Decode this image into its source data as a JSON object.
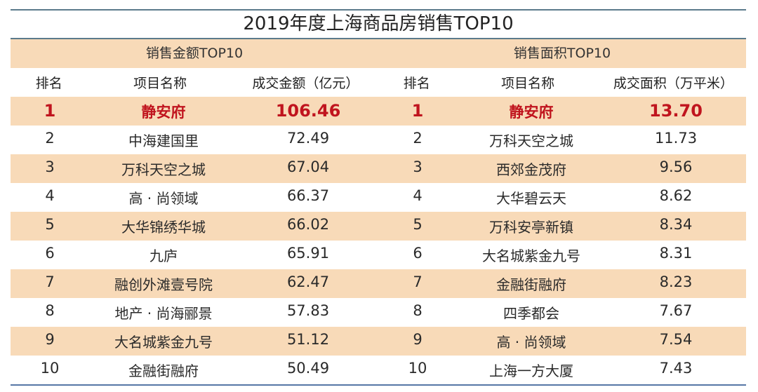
{
  "title": "2019年度上海商品房销售TOP10",
  "sections": {
    "left": "销售金额TOP10",
    "right": "销售面积TOP10"
  },
  "headers": {
    "left": {
      "rank": "排名",
      "name": "项目名称",
      "value": "成交金额（亿元）"
    },
    "right": {
      "rank": "排名",
      "name": "项目名称",
      "value": "成交面积（万平米）"
    }
  },
  "colors": {
    "highlight_text": "#c0141e",
    "shade": "#f8dab8",
    "rule": "#5b7a8c"
  },
  "rows": [
    {
      "l": {
        "rank": "1",
        "name": "静安府",
        "value": "106.46"
      },
      "r": {
        "rank": "1",
        "name": "静安府",
        "value": "13.70"
      }
    },
    {
      "l": {
        "rank": "2",
        "name": "中海建国里",
        "value": "72.49"
      },
      "r": {
        "rank": "2",
        "name": "万科天空之城",
        "value": "11.73"
      }
    },
    {
      "l": {
        "rank": "3",
        "name": "万科天空之城",
        "value": "67.04"
      },
      "r": {
        "rank": "3",
        "name": "西郊金茂府",
        "value": "9.56"
      }
    },
    {
      "l": {
        "rank": "4",
        "name": "高 · 尚领域",
        "value": "66.37"
      },
      "r": {
        "rank": "4",
        "name": "大华碧云天",
        "value": "8.62"
      }
    },
    {
      "l": {
        "rank": "5",
        "name": "大华锦绣华城",
        "value": "66.02"
      },
      "r": {
        "rank": "5",
        "name": "万科安亭新镇",
        "value": "8.34"
      }
    },
    {
      "l": {
        "rank": "6",
        "name": "九庐",
        "value": "65.91"
      },
      "r": {
        "rank": "6",
        "name": "大名城紫金九号",
        "value": "8.31"
      }
    },
    {
      "l": {
        "rank": "7",
        "name": "融创外滩壹号院",
        "value": "62.47"
      },
      "r": {
        "rank": "7",
        "name": "金融街融府",
        "value": "8.23"
      }
    },
    {
      "l": {
        "rank": "8",
        "name": "地产 · 尚海郦景",
        "value": "57.83"
      },
      "r": {
        "rank": "8",
        "name": "四季都会",
        "value": "7.67"
      }
    },
    {
      "l": {
        "rank": "9",
        "name": "大名城紫金九号",
        "value": "51.12"
      },
      "r": {
        "rank": "9",
        "name": "高 · 尚领域",
        "value": "7.54"
      }
    },
    {
      "l": {
        "rank": "10",
        "name": "金融街融府",
        "value": "50.49"
      },
      "r": {
        "rank": "10",
        "name": "上海一方大厦",
        "value": "7.43"
      }
    }
  ]
}
